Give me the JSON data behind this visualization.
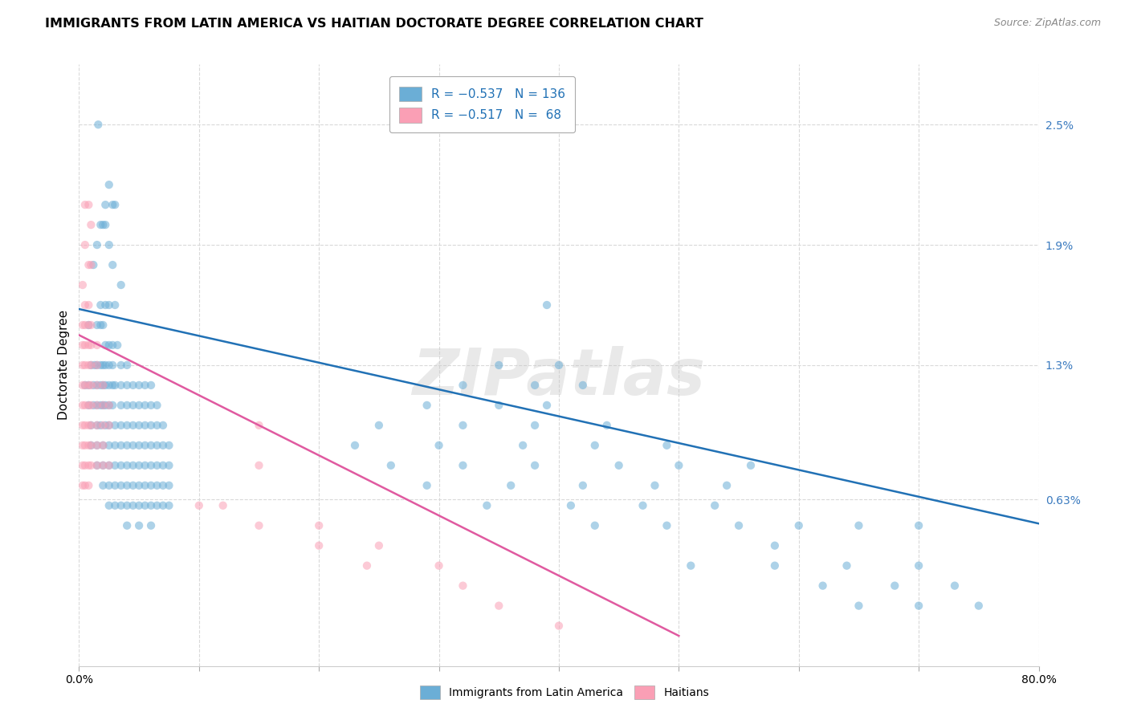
{
  "title": "IMMIGRANTS FROM LATIN AMERICA VS HAITIAN DOCTORATE DEGREE CORRELATION CHART",
  "source": "Source: ZipAtlas.com",
  "ylabel": "Doctorate Degree",
  "yticks": [
    "0.63%",
    "1.3%",
    "1.9%",
    "2.5%"
  ],
  "ytick_vals": [
    0.0063,
    0.013,
    0.019,
    0.025
  ],
  "xlim": [
    0.0,
    0.8
  ],
  "ylim": [
    -0.002,
    0.028
  ],
  "legend_labels": [
    "Immigrants from Latin America",
    "Haitians"
  ],
  "watermark": "ZIPatlas",
  "blue_color": "#6baed6",
  "pink_color": "#fa9fb5",
  "blue_scatter": [
    [
      0.016,
      0.025
    ],
    [
      0.025,
      0.022
    ],
    [
      0.022,
      0.021
    ],
    [
      0.028,
      0.021
    ],
    [
      0.03,
      0.021
    ],
    [
      0.018,
      0.02
    ],
    [
      0.02,
      0.02
    ],
    [
      0.022,
      0.02
    ],
    [
      0.025,
      0.019
    ],
    [
      0.015,
      0.019
    ],
    [
      0.012,
      0.018
    ],
    [
      0.028,
      0.018
    ],
    [
      0.035,
      0.017
    ],
    [
      0.018,
      0.016
    ],
    [
      0.022,
      0.016
    ],
    [
      0.025,
      0.016
    ],
    [
      0.03,
      0.016
    ],
    [
      0.39,
      0.016
    ],
    [
      0.008,
      0.015
    ],
    [
      0.015,
      0.015
    ],
    [
      0.018,
      0.015
    ],
    [
      0.02,
      0.015
    ],
    [
      0.022,
      0.014
    ],
    [
      0.025,
      0.014
    ],
    [
      0.028,
      0.014
    ],
    [
      0.032,
      0.014
    ],
    [
      0.01,
      0.013
    ],
    [
      0.013,
      0.013
    ],
    [
      0.015,
      0.013
    ],
    [
      0.018,
      0.013
    ],
    [
      0.02,
      0.013
    ],
    [
      0.022,
      0.013
    ],
    [
      0.025,
      0.013
    ],
    [
      0.028,
      0.013
    ],
    [
      0.035,
      0.013
    ],
    [
      0.04,
      0.013
    ],
    [
      0.35,
      0.013
    ],
    [
      0.4,
      0.013
    ],
    [
      0.005,
      0.012
    ],
    [
      0.008,
      0.012
    ],
    [
      0.012,
      0.012
    ],
    [
      0.015,
      0.012
    ],
    [
      0.018,
      0.012
    ],
    [
      0.02,
      0.012
    ],
    [
      0.022,
      0.012
    ],
    [
      0.025,
      0.012
    ],
    [
      0.028,
      0.012
    ],
    [
      0.03,
      0.012
    ],
    [
      0.035,
      0.012
    ],
    [
      0.04,
      0.012
    ],
    [
      0.045,
      0.012
    ],
    [
      0.05,
      0.012
    ],
    [
      0.055,
      0.012
    ],
    [
      0.06,
      0.012
    ],
    [
      0.32,
      0.012
    ],
    [
      0.38,
      0.012
    ],
    [
      0.42,
      0.012
    ],
    [
      0.008,
      0.011
    ],
    [
      0.012,
      0.011
    ],
    [
      0.015,
      0.011
    ],
    [
      0.018,
      0.011
    ],
    [
      0.02,
      0.011
    ],
    [
      0.022,
      0.011
    ],
    [
      0.025,
      0.011
    ],
    [
      0.028,
      0.011
    ],
    [
      0.035,
      0.011
    ],
    [
      0.04,
      0.011
    ],
    [
      0.045,
      0.011
    ],
    [
      0.05,
      0.011
    ],
    [
      0.055,
      0.011
    ],
    [
      0.06,
      0.011
    ],
    [
      0.065,
      0.011
    ],
    [
      0.29,
      0.011
    ],
    [
      0.35,
      0.011
    ],
    [
      0.39,
      0.011
    ],
    [
      0.01,
      0.01
    ],
    [
      0.015,
      0.01
    ],
    [
      0.018,
      0.01
    ],
    [
      0.022,
      0.01
    ],
    [
      0.025,
      0.01
    ],
    [
      0.03,
      0.01
    ],
    [
      0.035,
      0.01
    ],
    [
      0.04,
      0.01
    ],
    [
      0.045,
      0.01
    ],
    [
      0.05,
      0.01
    ],
    [
      0.055,
      0.01
    ],
    [
      0.06,
      0.01
    ],
    [
      0.065,
      0.01
    ],
    [
      0.07,
      0.01
    ],
    [
      0.25,
      0.01
    ],
    [
      0.32,
      0.01
    ],
    [
      0.38,
      0.01
    ],
    [
      0.44,
      0.01
    ],
    [
      0.01,
      0.009
    ],
    [
      0.015,
      0.009
    ],
    [
      0.02,
      0.009
    ],
    [
      0.025,
      0.009
    ],
    [
      0.03,
      0.009
    ],
    [
      0.035,
      0.009
    ],
    [
      0.04,
      0.009
    ],
    [
      0.045,
      0.009
    ],
    [
      0.05,
      0.009
    ],
    [
      0.055,
      0.009
    ],
    [
      0.06,
      0.009
    ],
    [
      0.065,
      0.009
    ],
    [
      0.07,
      0.009
    ],
    [
      0.075,
      0.009
    ],
    [
      0.23,
      0.009
    ],
    [
      0.3,
      0.009
    ],
    [
      0.37,
      0.009
    ],
    [
      0.43,
      0.009
    ],
    [
      0.49,
      0.009
    ],
    [
      0.015,
      0.008
    ],
    [
      0.02,
      0.008
    ],
    [
      0.025,
      0.008
    ],
    [
      0.03,
      0.008
    ],
    [
      0.035,
      0.008
    ],
    [
      0.04,
      0.008
    ],
    [
      0.045,
      0.008
    ],
    [
      0.05,
      0.008
    ],
    [
      0.055,
      0.008
    ],
    [
      0.06,
      0.008
    ],
    [
      0.065,
      0.008
    ],
    [
      0.07,
      0.008
    ],
    [
      0.075,
      0.008
    ],
    [
      0.26,
      0.008
    ],
    [
      0.32,
      0.008
    ],
    [
      0.38,
      0.008
    ],
    [
      0.45,
      0.008
    ],
    [
      0.5,
      0.008
    ],
    [
      0.56,
      0.008
    ],
    [
      0.02,
      0.007
    ],
    [
      0.025,
      0.007
    ],
    [
      0.03,
      0.007
    ],
    [
      0.035,
      0.007
    ],
    [
      0.04,
      0.007
    ],
    [
      0.045,
      0.007
    ],
    [
      0.05,
      0.007
    ],
    [
      0.055,
      0.007
    ],
    [
      0.06,
      0.007
    ],
    [
      0.065,
      0.007
    ],
    [
      0.07,
      0.007
    ],
    [
      0.075,
      0.007
    ],
    [
      0.29,
      0.007
    ],
    [
      0.36,
      0.007
    ],
    [
      0.42,
      0.007
    ],
    [
      0.48,
      0.007
    ],
    [
      0.54,
      0.007
    ],
    [
      0.025,
      0.006
    ],
    [
      0.03,
      0.006
    ],
    [
      0.035,
      0.006
    ],
    [
      0.04,
      0.006
    ],
    [
      0.045,
      0.006
    ],
    [
      0.05,
      0.006
    ],
    [
      0.055,
      0.006
    ],
    [
      0.06,
      0.006
    ],
    [
      0.065,
      0.006
    ],
    [
      0.07,
      0.006
    ],
    [
      0.075,
      0.006
    ],
    [
      0.34,
      0.006
    ],
    [
      0.41,
      0.006
    ],
    [
      0.47,
      0.006
    ],
    [
      0.53,
      0.006
    ],
    [
      0.04,
      0.005
    ],
    [
      0.05,
      0.005
    ],
    [
      0.06,
      0.005
    ],
    [
      0.43,
      0.005
    ],
    [
      0.49,
      0.005
    ],
    [
      0.55,
      0.005
    ],
    [
      0.6,
      0.005
    ],
    [
      0.65,
      0.005
    ],
    [
      0.7,
      0.005
    ],
    [
      0.58,
      0.004
    ],
    [
      0.51,
      0.003
    ],
    [
      0.58,
      0.003
    ],
    [
      0.64,
      0.003
    ],
    [
      0.7,
      0.003
    ],
    [
      0.62,
      0.002
    ],
    [
      0.68,
      0.002
    ],
    [
      0.73,
      0.002
    ],
    [
      0.65,
      0.001
    ],
    [
      0.7,
      0.001
    ],
    [
      0.75,
      0.001
    ]
  ],
  "pink_scatter": [
    [
      0.005,
      0.021
    ],
    [
      0.008,
      0.021
    ],
    [
      0.01,
      0.02
    ],
    [
      0.005,
      0.019
    ],
    [
      0.008,
      0.018
    ],
    [
      0.01,
      0.018
    ],
    [
      0.003,
      0.017
    ],
    [
      0.005,
      0.016
    ],
    [
      0.008,
      0.016
    ],
    [
      0.003,
      0.015
    ],
    [
      0.005,
      0.015
    ],
    [
      0.008,
      0.015
    ],
    [
      0.01,
      0.015
    ],
    [
      0.003,
      0.014
    ],
    [
      0.005,
      0.014
    ],
    [
      0.008,
      0.014
    ],
    [
      0.01,
      0.014
    ],
    [
      0.015,
      0.014
    ],
    [
      0.003,
      0.013
    ],
    [
      0.005,
      0.013
    ],
    [
      0.008,
      0.013
    ],
    [
      0.01,
      0.013
    ],
    [
      0.015,
      0.013
    ],
    [
      0.003,
      0.012
    ],
    [
      0.005,
      0.012
    ],
    [
      0.008,
      0.012
    ],
    [
      0.01,
      0.012
    ],
    [
      0.015,
      0.012
    ],
    [
      0.02,
      0.012
    ],
    [
      0.003,
      0.011
    ],
    [
      0.005,
      0.011
    ],
    [
      0.008,
      0.011
    ],
    [
      0.01,
      0.011
    ],
    [
      0.015,
      0.011
    ],
    [
      0.02,
      0.011
    ],
    [
      0.025,
      0.011
    ],
    [
      0.003,
      0.01
    ],
    [
      0.005,
      0.01
    ],
    [
      0.008,
      0.01
    ],
    [
      0.01,
      0.01
    ],
    [
      0.015,
      0.01
    ],
    [
      0.02,
      0.01
    ],
    [
      0.025,
      0.01
    ],
    [
      0.15,
      0.01
    ],
    [
      0.003,
      0.009
    ],
    [
      0.005,
      0.009
    ],
    [
      0.008,
      0.009
    ],
    [
      0.01,
      0.009
    ],
    [
      0.015,
      0.009
    ],
    [
      0.02,
      0.009
    ],
    [
      0.003,
      0.008
    ],
    [
      0.005,
      0.008
    ],
    [
      0.008,
      0.008
    ],
    [
      0.01,
      0.008
    ],
    [
      0.015,
      0.008
    ],
    [
      0.02,
      0.008
    ],
    [
      0.025,
      0.008
    ],
    [
      0.15,
      0.008
    ],
    [
      0.003,
      0.007
    ],
    [
      0.005,
      0.007
    ],
    [
      0.008,
      0.007
    ],
    [
      0.1,
      0.006
    ],
    [
      0.12,
      0.006
    ],
    [
      0.15,
      0.005
    ],
    [
      0.2,
      0.005
    ],
    [
      0.2,
      0.004
    ],
    [
      0.25,
      0.004
    ],
    [
      0.24,
      0.003
    ],
    [
      0.3,
      0.003
    ],
    [
      0.32,
      0.002
    ],
    [
      0.35,
      0.001
    ],
    [
      0.4,
      0.0
    ]
  ],
  "blue_line": {
    "x0": 0.0,
    "y0": 0.0158,
    "x1": 0.8,
    "y1": 0.0051
  },
  "pink_line": {
    "x0": 0.0,
    "y0": 0.0145,
    "x1": 0.5,
    "y1": -0.0005
  },
  "background_color": "#ffffff",
  "grid_color": "#d9d9d9",
  "title_fontsize": 11.5,
  "axis_label_fontsize": 11,
  "tick_fontsize": 10,
  "scatter_size": 55,
  "scatter_alpha": 0.55,
  "line_width": 1.8
}
